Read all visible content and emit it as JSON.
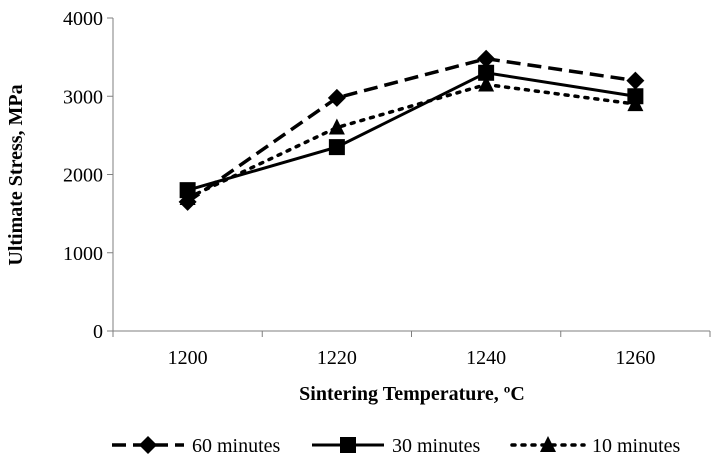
{
  "chart_data": {
    "type": "line",
    "title": "",
    "xlabel": "Sintering Temperature, ºC",
    "ylabel": "Ultimate Stress, MPa",
    "categories": [
      "1200",
      "1220",
      "1240",
      "1260"
    ],
    "ylim": [
      0,
      4000
    ],
    "yticks": [
      "0",
      "1000",
      "2000",
      "3000",
      "4000"
    ],
    "grid": false,
    "legend_position": "bottom",
    "series": [
      {
        "name": "60 minutes",
        "values": [
          1650,
          2980,
          3480,
          3200
        ],
        "marker": "diamond",
        "line_style": "dashed",
        "color": "#000000"
      },
      {
        "name": "30 minutes",
        "values": [
          1800,
          2350,
          3300,
          3000
        ],
        "marker": "square",
        "line_style": "solid",
        "color": "#000000"
      },
      {
        "name": "10 minutes",
        "values": [
          1700,
          2600,
          3150,
          2900
        ],
        "marker": "triangle",
        "line_style": "dotted",
        "color": "#000000"
      }
    ]
  }
}
